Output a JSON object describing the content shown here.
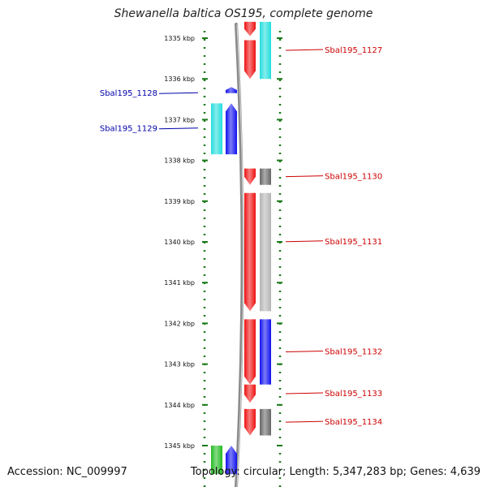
{
  "title": "Shewanella baltica OS195, complete genome",
  "footer": {
    "accession": "Accession: NC_009997",
    "summary": "Topology: circular; Length: 5,347,283 bp; Genes: 4,639"
  },
  "colors": {
    "background": "#ffffff",
    "ruler": "#1a7a1a",
    "backbone": "#8a8a8a",
    "right_labels": "#cc0000",
    "left_labels": "#0000aa",
    "red": "#ee1111",
    "cyan": "#22dddd",
    "blue": "#1111ee",
    "dark_gray": "#666666",
    "light_gray": "#b4b4b4",
    "green": "#22bb22"
  },
  "axis": {
    "unit": "kbp",
    "range_kbp": [
      1334.7,
      1345.6
    ],
    "ticks_kbp": [
      1335,
      1336,
      1337,
      1338,
      1339,
      1340,
      1341,
      1342,
      1343,
      1344,
      1345
    ],
    "tick_labels": [
      "1335 kbp",
      "1336 kbp",
      "1337 kbp",
      "1338 kbp",
      "1339 kbp",
      "1340 kbp",
      "1341 kbp",
      "1342 kbp",
      "1343 kbp",
      "1344 kbp",
      "1345 kbp"
    ]
  },
  "genes": [
    {
      "lane": "plus",
      "color": "red",
      "start_kbp": 1334.6,
      "end_kbp": 1334.95,
      "direction": "down",
      "label": ""
    },
    {
      "lane": "plus_outer",
      "color": "cyan",
      "start_kbp": 1334.6,
      "end_kbp": 1336.0,
      "direction": "none",
      "label": "Sbal195_1127"
    },
    {
      "lane": "plus",
      "color": "red",
      "start_kbp": 1335.05,
      "end_kbp": 1336.0,
      "direction": "down",
      "label": ""
    },
    {
      "lane": "minus",
      "color": "blue",
      "start_kbp": 1336.2,
      "end_kbp": 1336.35,
      "direction": "up",
      "label": "Sbal195_1128"
    },
    {
      "lane": "minus_outer",
      "color": "cyan",
      "start_kbp": 1336.6,
      "end_kbp": 1337.85,
      "direction": "none",
      "label": "Sbal195_1129"
    },
    {
      "lane": "minus",
      "color": "blue",
      "start_kbp": 1336.6,
      "end_kbp": 1337.85,
      "direction": "up",
      "label": ""
    },
    {
      "lane": "plus",
      "color": "red",
      "start_kbp": 1338.2,
      "end_kbp": 1338.6,
      "direction": "down",
      "label": ""
    },
    {
      "lane": "plus_outer",
      "color": "dark_gray",
      "start_kbp": 1338.2,
      "end_kbp": 1338.6,
      "direction": "none",
      "label": "Sbal195_1130"
    },
    {
      "lane": "plus",
      "color": "red",
      "start_kbp": 1338.8,
      "end_kbp": 1341.7,
      "direction": "down",
      "label": ""
    },
    {
      "lane": "plus_outer",
      "color": "light_gray",
      "start_kbp": 1338.8,
      "end_kbp": 1341.7,
      "direction": "none",
      "label": "Sbal195_1131"
    },
    {
      "lane": "plus",
      "color": "red",
      "start_kbp": 1341.9,
      "end_kbp": 1343.5,
      "direction": "down",
      "label": ""
    },
    {
      "lane": "plus_outer",
      "color": "blue",
      "start_kbp": 1341.9,
      "end_kbp": 1343.5,
      "direction": "none",
      "label": "Sbal195_1132"
    },
    {
      "lane": "plus",
      "color": "red",
      "start_kbp": 1343.5,
      "end_kbp": 1343.95,
      "direction": "down",
      "label": "Sbal195_1133"
    },
    {
      "lane": "plus",
      "color": "red",
      "start_kbp": 1344.1,
      "end_kbp": 1344.75,
      "direction": "down",
      "label": ""
    },
    {
      "lane": "plus_outer",
      "color": "dark_gray",
      "start_kbp": 1344.1,
      "end_kbp": 1344.75,
      "direction": "none",
      "label": "Sbal195_1134"
    },
    {
      "lane": "minus_outer",
      "color": "green",
      "start_kbp": 1345.0,
      "end_kbp": 1345.7,
      "direction": "none",
      "label": ""
    },
    {
      "lane": "minus",
      "color": "blue",
      "start_kbp": 1345.0,
      "end_kbp": 1345.7,
      "direction": "up",
      "label": ""
    }
  ]
}
